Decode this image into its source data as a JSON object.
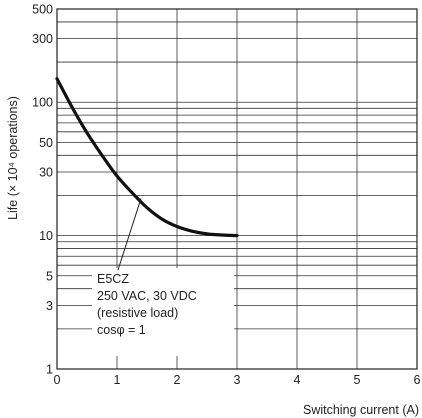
{
  "chart_data": {
    "type": "line",
    "xlabel": "Switching current (A)",
    "ylabel": "Life (× 10⁴ operations)",
    "x_scale": "linear",
    "y_scale": "log",
    "xlim": [
      0,
      6
    ],
    "ylim": [
      1,
      500
    ],
    "x_ticks": [
      0,
      1,
      2,
      3,
      4,
      5,
      6
    ],
    "y_tick_labels": [
      1,
      3,
      5,
      10,
      30,
      50,
      100,
      300,
      500
    ],
    "grid": true,
    "series": [
      {
        "x": [
          0,
          0.25,
          0.5,
          0.75,
          1.0,
          1.25,
          1.5,
          1.75,
          2.0,
          2.25,
          2.5,
          2.75,
          3.0
        ],
        "y": [
          150,
          92,
          59,
          40,
          28,
          21,
          16.2,
          13.3,
          11.7,
          10.8,
          10.3,
          10.1,
          10.0
        ]
      }
    ],
    "annotation": {
      "lines": [
        "E5CZ",
        "250 VAC, 30 VDC",
        "(resistive load)",
        "cosφ = 1"
      ],
      "points_to": {
        "x": 1.4,
        "y": 19
      }
    }
  }
}
